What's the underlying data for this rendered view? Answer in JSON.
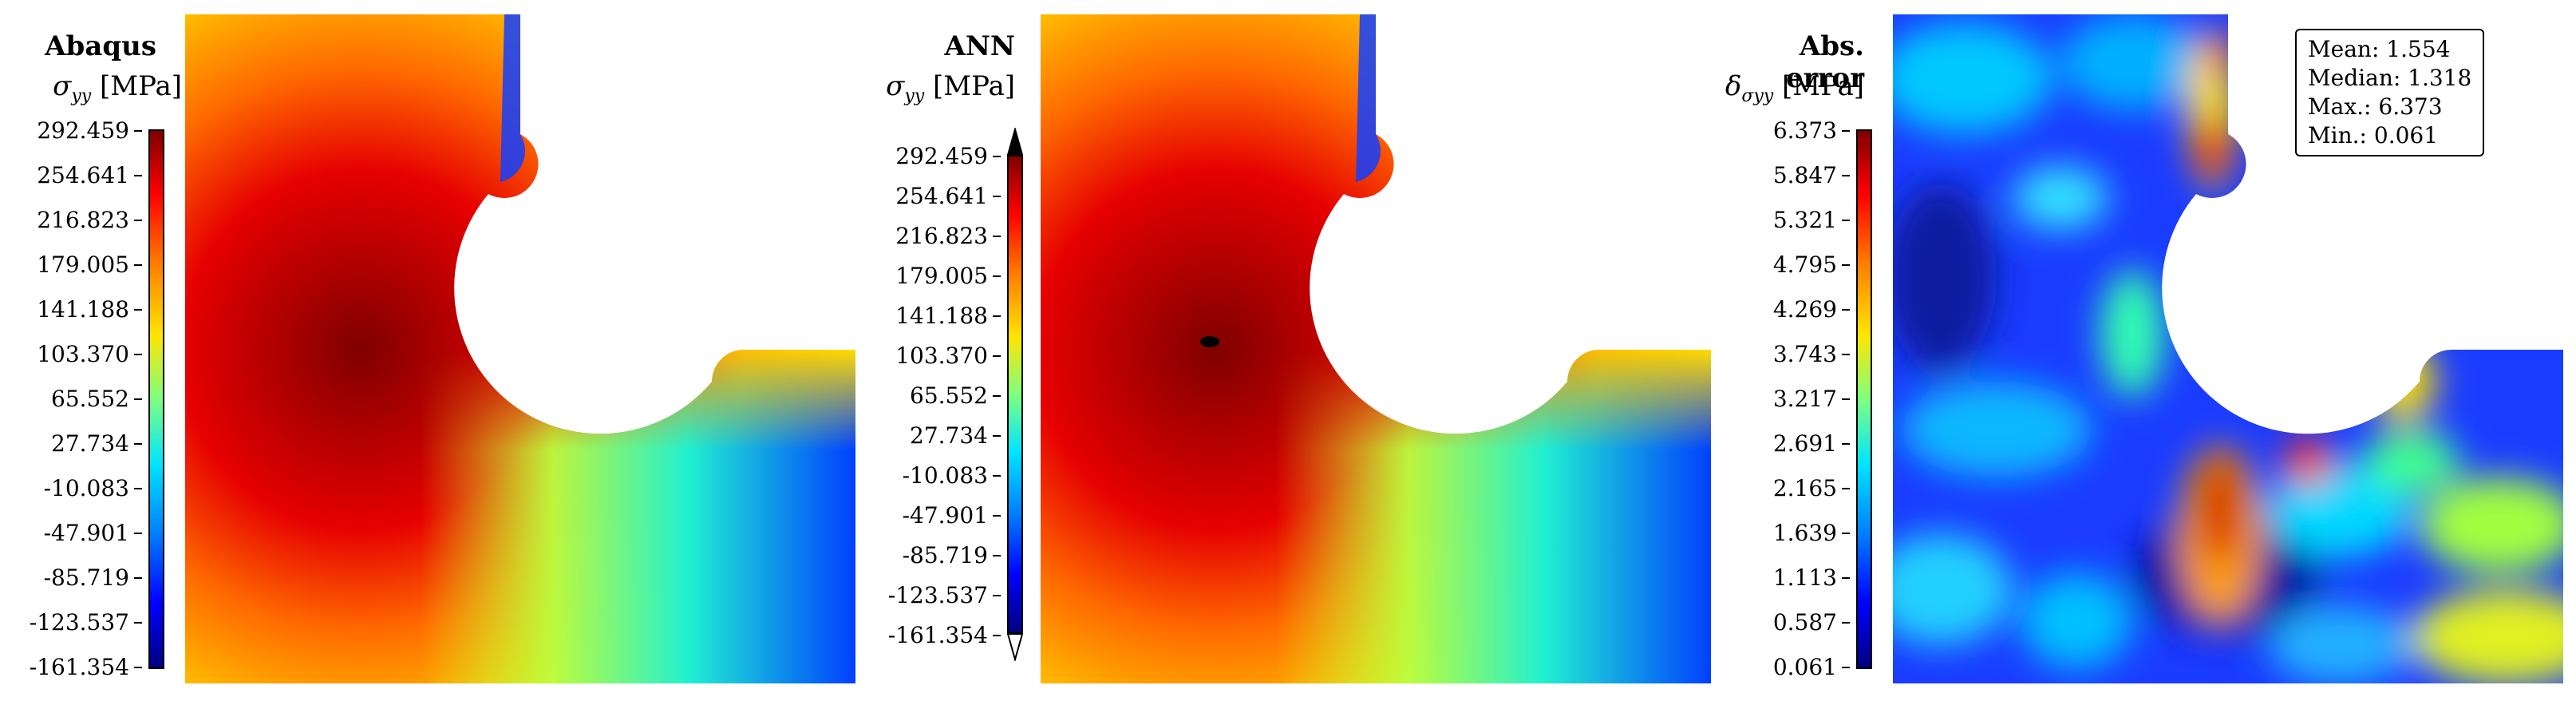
{
  "panels": [
    {
      "title": "Abaqus",
      "quantity": "σ",
      "quantity_sub": "yy",
      "unit": "[MPa]",
      "colorbar_ticks": [
        "292.459",
        "254.641",
        "216.823",
        "179.005",
        "141.188",
        "103.370",
        "65.552",
        "27.734",
        "-10.083",
        "-47.901",
        "-85.719",
        "-123.537",
        "-161.354"
      ]
    },
    {
      "title": "ANN",
      "quantity": "σ",
      "quantity_sub": "yy",
      "unit": "[MPa]",
      "colorbar_ticks": [
        "292.459",
        "254.641",
        "216.823",
        "179.005",
        "141.188",
        "103.370",
        "65.552",
        "27.734",
        "-10.083",
        "-47.901",
        "-85.719",
        "-123.537",
        "-161.354"
      ]
    },
    {
      "title": "Abs. error",
      "quantity": "δ",
      "quantity_sub": "σyy",
      "unit": "[MPa]",
      "colorbar_ticks": [
        "6.373",
        "5.847",
        "5.321",
        "4.795",
        "4.269",
        "3.743",
        "3.217",
        "2.691",
        "2.165",
        "1.639",
        "1.113",
        "0.587",
        "0.061"
      ],
      "stats": [
        "Mean: 1.554",
        "Median: 1.318",
        "Max.: 6.373",
        "Min.: 0.061"
      ]
    }
  ],
  "colormap": [
    "#00007f",
    "#0000ff",
    "#007fff",
    "#00e5ff",
    "#7fff7f",
    "#ffe500",
    "#ff7f00",
    "#ff0000",
    "#7f0000"
  ]
}
